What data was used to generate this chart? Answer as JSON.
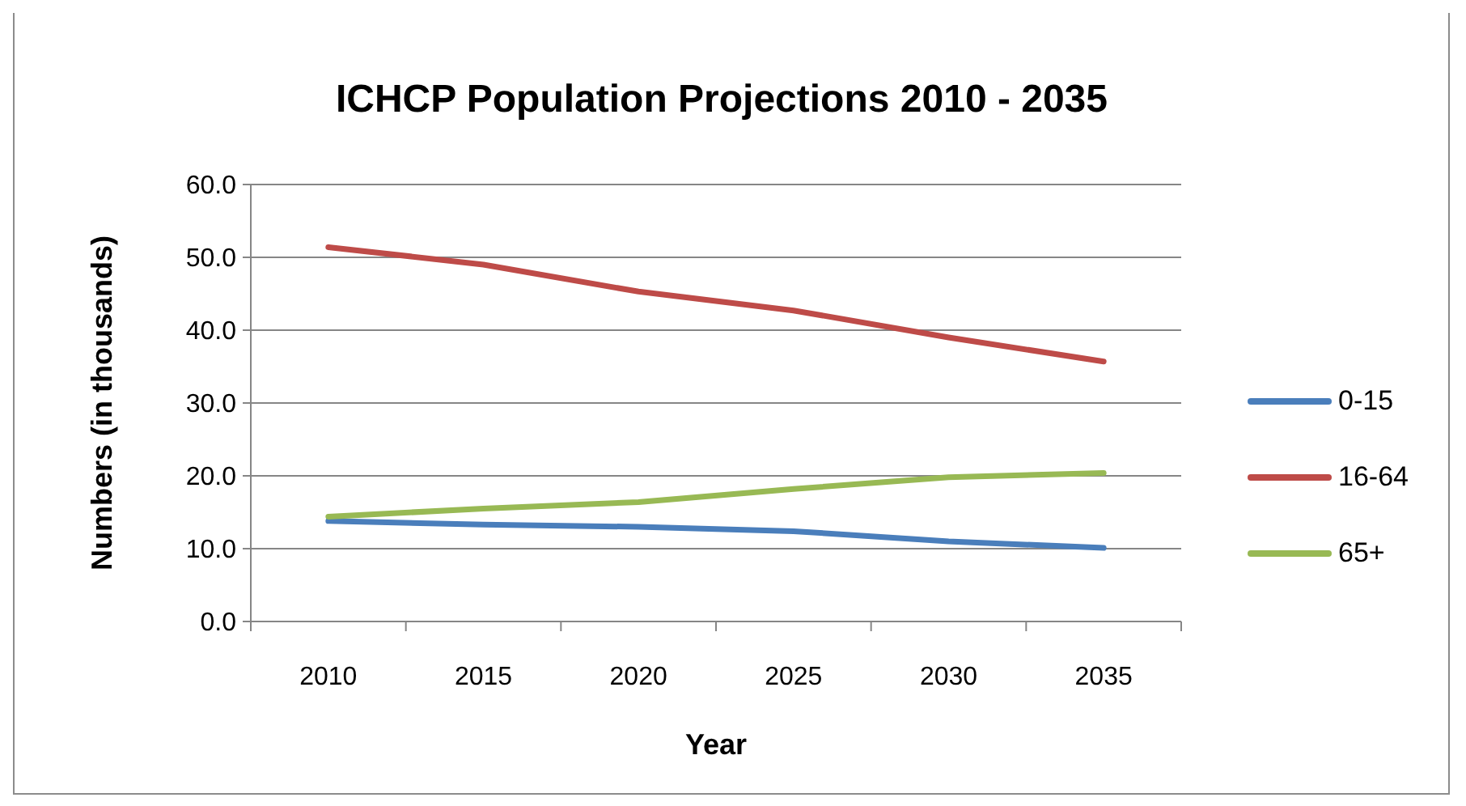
{
  "chart_data": {
    "type": "line",
    "title": "ICHCP Population Projections 2010 - 2035",
    "xlabel": "Year",
    "ylabel": "Numbers (in thousands)",
    "categories": [
      "2010",
      "2015",
      "2020",
      "2025",
      "2030",
      "2035"
    ],
    "series": [
      {
        "name": "0-15",
        "color": "#4a7ebb",
        "values": [
          13.8,
          13.3,
          13.0,
          12.4,
          11.0,
          10.1
        ]
      },
      {
        "name": "16-64",
        "color": "#be4b48",
        "values": [
          51.4,
          49.0,
          45.3,
          42.7,
          39.0,
          35.7
        ]
      },
      {
        "name": "65+",
        "color": "#98b954",
        "values": [
          14.4,
          15.5,
          16.4,
          18.2,
          19.8,
          20.4
        ]
      }
    ],
    "ylim": [
      0,
      60
    ],
    "yticks": [
      {
        "value": 0,
        "label": "0.0"
      },
      {
        "value": 10,
        "label": "10.0"
      },
      {
        "value": 20,
        "label": "20.0"
      },
      {
        "value": 30,
        "label": "30.0"
      },
      {
        "value": 40,
        "label": "40.0"
      },
      {
        "value": 50,
        "label": "50.0"
      },
      {
        "value": 60,
        "label": "60.0"
      }
    ],
    "grid": "y",
    "legend": "right",
    "marker": "none",
    "line_style": "solid"
  }
}
